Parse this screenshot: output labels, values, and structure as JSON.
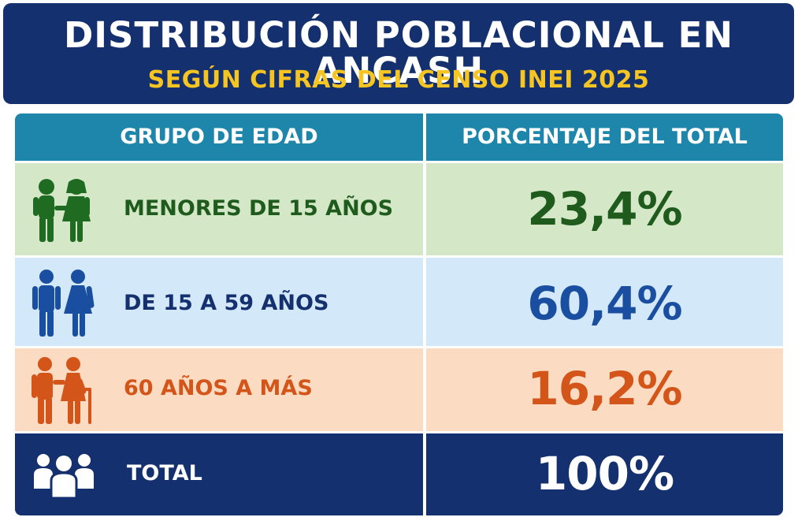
{
  "header": {
    "title": "DISTRIBUCIÓN POBLACIONAL EN ANCASH",
    "subtitle": "SEGÚN CIFRAS DEL CENSO INEI 2025"
  },
  "chart_data": {
    "type": "table",
    "title": "DISTRIBUCIÓN POBLACIONAL EN ANCASH",
    "subtitle": "SEGÚN CIFRAS DEL CENSO INEI 2025",
    "columns": [
      "GRUPO DE EDAD",
      "PORCENTAJE DEL TOTAL"
    ],
    "rows": [
      {
        "group": "MENORES DE 15 AÑOS",
        "percent": "23,4%",
        "value": 23.4,
        "icon": "children-icon",
        "color": "#1f5b1d"
      },
      {
        "group": "DE 15 A 59 AÑOS",
        "percent": "60,4%",
        "value": 60.4,
        "icon": "adults-icon",
        "color": "#1a4ea0"
      },
      {
        "group": "60 AÑOS A MÁS",
        "percent": "16,2%",
        "value": 16.2,
        "icon": "elderly-icon",
        "color": "#d4551a"
      },
      {
        "group": "TOTAL",
        "percent": "100%",
        "value": 100,
        "icon": "group-icon",
        "color": "#ffffff"
      }
    ]
  },
  "colors": {
    "header_bg": "#14306e",
    "subtitle": "#f7c522",
    "table_header_bg": "#1e86ab",
    "row1_bg": "#d4e8c7",
    "row2_bg": "#d3e8f8",
    "row3_bg": "#fbdcc2",
    "total_bg": "#14306e"
  }
}
